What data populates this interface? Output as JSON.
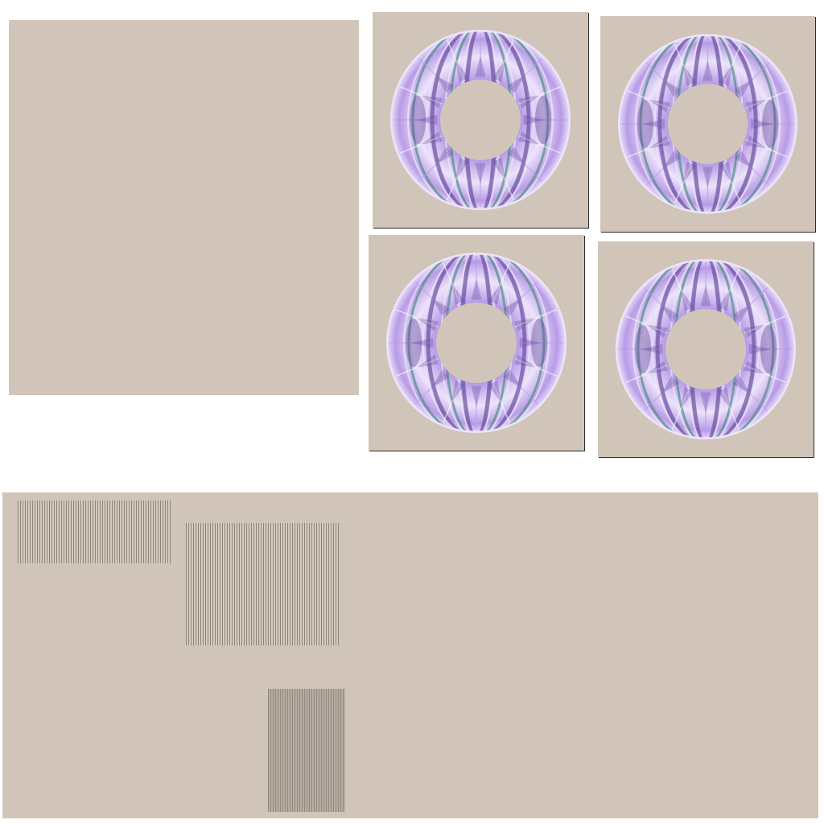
{
  "colors": {
    "background": "#ffffff",
    "panel": "#d1c5b9",
    "tile_shadow": "#2b2b2b",
    "ring_light": "#ece4fb",
    "ring_mid": "#b89be6",
    "ring_dark": "#6a4fa0",
    "ring_accent": "#4f8f86",
    "stripe_dark": "#8b8178"
  },
  "icons": {
    "ring": "ring-pattern-icon",
    "stripes": "stripe-pattern-icon"
  },
  "tiles": [
    {
      "name": "ring-tile-top-left"
    },
    {
      "name": "ring-tile-top-right"
    },
    {
      "name": "ring-tile-bottom-left"
    },
    {
      "name": "ring-tile-bottom-right"
    }
  ],
  "stripe_patches": [
    {
      "name": "stripe-patch-1",
      "style": "light"
    },
    {
      "name": "stripe-patch-2",
      "style": "light"
    },
    {
      "name": "stripe-patch-3",
      "style": "dense"
    }
  ]
}
